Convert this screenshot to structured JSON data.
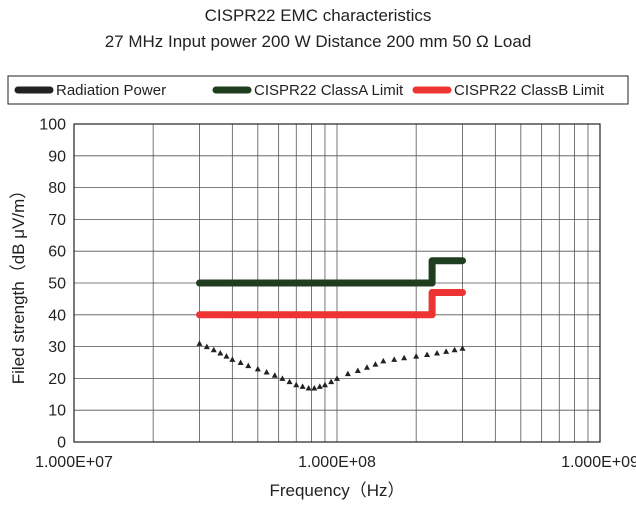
{
  "chart_data": {
    "type": "line",
    "title": "CISPR22 EMC characteristics",
    "subtitle": "27 MHz  Input power 200 W Distance 200 mm 50 Ω Load",
    "xlabel": "Frequency（Hz）",
    "ylabel": "Filed strength（dB μV/m）",
    "x_scale": "log",
    "xlim": [
      10000000,
      1000000000
    ],
    "ylim": [
      0,
      100
    ],
    "x_ticks": [
      10000000,
      100000000,
      1000000000
    ],
    "x_tick_labels": [
      "1.000E+07",
      "1.000E+08",
      "1.000E+09"
    ],
    "y_ticks": [
      0,
      10,
      20,
      30,
      40,
      50,
      60,
      70,
      80,
      90,
      100
    ],
    "grid": true,
    "legend_position": "top",
    "series": [
      {
        "name": "Radiation Power",
        "color": "#222222",
        "style": "scatter-triangle",
        "x": [
          30000000,
          32000000,
          34000000,
          36000000,
          38000000,
          40000000,
          43000000,
          46000000,
          50000000,
          54000000,
          58000000,
          62000000,
          66000000,
          70000000,
          74000000,
          78000000,
          82000000,
          86000000,
          90000000,
          95000000,
          100000000,
          110000000,
          120000000,
          130000000,
          140000000,
          150000000,
          165000000,
          180000000,
          200000000,
          220000000,
          240000000,
          260000000,
          280000000,
          300000000
        ],
        "y": [
          31,
          30,
          29,
          28,
          27,
          26,
          25,
          24,
          23,
          22,
          21,
          20,
          19,
          18,
          17.5,
          17,
          17,
          17.5,
          18,
          19,
          20,
          21.5,
          22.5,
          23.5,
          24.5,
          25.5,
          26,
          26.5,
          27,
          27.5,
          28,
          28.5,
          29,
          29.5
        ]
      },
      {
        "name": "CISPR22 ClassA Limit",
        "color": "#1f3d1f",
        "style": "line",
        "x": [
          30000000,
          230000000,
          230000000,
          300000000
        ],
        "y": [
          50,
          50,
          57,
          57
        ]
      },
      {
        "name": "CISPR22 ClassB Limit",
        "color": "#ee3333",
        "style": "line",
        "x": [
          30000000,
          230000000,
          230000000,
          300000000
        ],
        "y": [
          40,
          40,
          47,
          47
        ]
      }
    ]
  }
}
